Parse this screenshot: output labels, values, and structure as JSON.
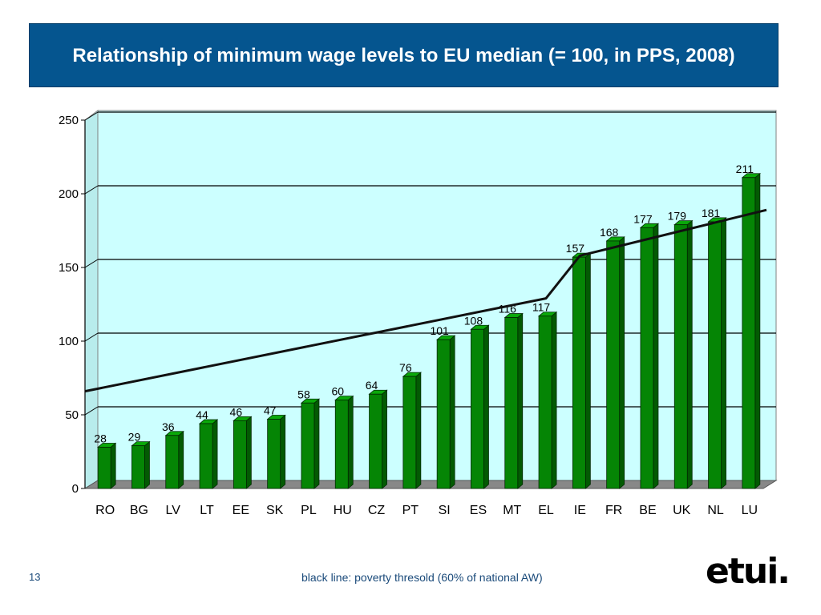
{
  "slide": {
    "title": "Relationship of minimum wage levels to EU median (= 100, in PPS, 2008)",
    "page_number": "13",
    "footnote": "black line: poverty thresold (60% of national AW)",
    "logo_text": "etui."
  },
  "chart_data": {
    "type": "bar",
    "title": "",
    "xlabel": "",
    "ylabel": "",
    "ylim": [
      0,
      250
    ],
    "yticks": [
      0,
      50,
      100,
      150,
      200,
      250
    ],
    "grid": true,
    "categories": [
      "RO",
      "BG",
      "LV",
      "LT",
      "EE",
      "SK",
      "PL",
      "HU",
      "CZ",
      "PT",
      "SI",
      "ES",
      "MT",
      "EL",
      "IE",
      "FR",
      "BE",
      "UK",
      "NL",
      "LU"
    ],
    "series": [
      {
        "values": [
          28,
          29,
          36,
          44,
          46,
          47,
          58,
          60,
          64,
          76,
          101,
          108,
          116,
          117,
          157,
          168,
          177,
          179,
          181,
          211
        ],
        "color": "#058505"
      }
    ],
    "poverty_line": {
      "color": "#111111",
      "points": [
        [
          0,
          66
        ],
        [
          13,
          129
        ],
        [
          14,
          158
        ],
        [
          19.5,
          189
        ]
      ]
    },
    "colors": {
      "plot_background": "#ccffff",
      "floor": "#888888",
      "gridline": "#000000"
    }
  }
}
